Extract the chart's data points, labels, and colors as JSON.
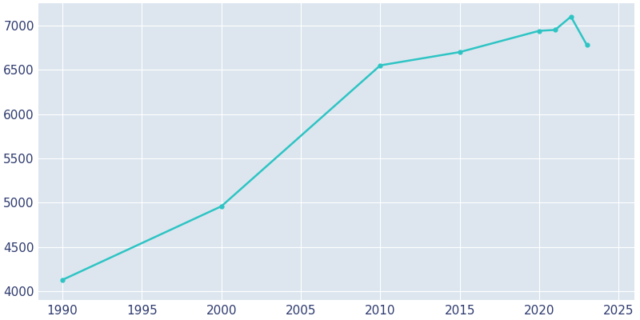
{
  "x_data": [
    1990,
    2000,
    2010,
    2015,
    2020,
    2021,
    2022,
    2023
  ],
  "population": [
    4130,
    4960,
    6550,
    6700,
    6940,
    6950,
    7100,
    6780
  ],
  "line_color": "#2EC4C4",
  "axes_facecolor": "#DDE6EF",
  "figure_facecolor": "#FFFFFF",
  "text_color": "#2E3A6E",
  "ylim": [
    3900,
    7250
  ],
  "xlim": [
    1988.5,
    2026
  ],
  "xticks": [
    1990,
    1995,
    2000,
    2005,
    2010,
    2015,
    2020,
    2025
  ],
  "yticks": [
    4000,
    4500,
    5000,
    5500,
    6000,
    6500,
    7000
  ],
  "line_width": 1.8,
  "marker": "o",
  "marker_size": 3.5,
  "grid_color": "#FFFFFF",
  "grid_linewidth": 0.8,
  "tick_labelsize": 11
}
